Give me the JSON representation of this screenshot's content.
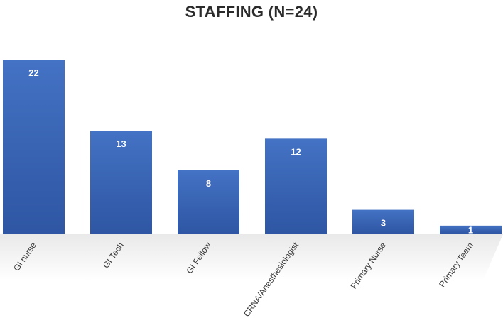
{
  "chart_data": {
    "type": "bar",
    "title": "STAFFING (N=24)",
    "categories": [
      "GI nurse",
      "GI Tech",
      "GI Fellow",
      "CRNA/Anesthesiologist",
      "Primary Nurse",
      "Primary Team"
    ],
    "values": [
      22,
      13,
      8,
      12,
      3,
      1
    ],
    "xlabel": "",
    "ylabel": "",
    "ylim": [
      0,
      22
    ],
    "grid": false,
    "legend": "none",
    "bar_color": "#4472C4",
    "bar_color_dark": "#2E56A3",
    "value_label_color": "#FFFFFF"
  }
}
